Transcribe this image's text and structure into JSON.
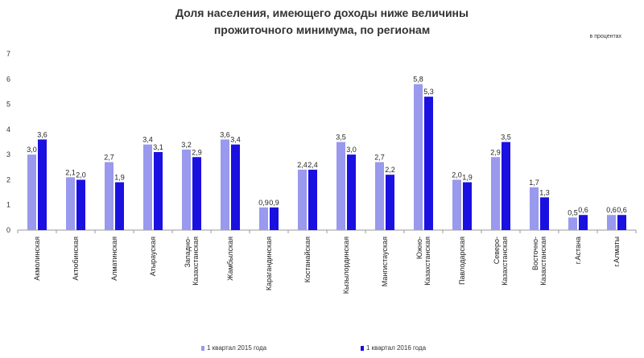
{
  "chart_data": {
    "type": "bar",
    "title": [
      "Доля населения, имеющего доходы ниже величины",
      "прожиточного минимума, по регионам"
    ],
    "unit_label": "в процентах",
    "ylim": [
      0,
      7
    ],
    "yticks": [
      0,
      1,
      2,
      3,
      4,
      5,
      6,
      7
    ],
    "categories": [
      [
        "Акмолинская"
      ],
      [
        "Актюбинская"
      ],
      [
        "Алматинская"
      ],
      [
        "Атырауская"
      ],
      [
        "Западно-",
        "Казахстанская"
      ],
      [
        "Жамбылская"
      ],
      [
        "Карагандинская"
      ],
      [
        "Костанайская"
      ],
      [
        "Кызылординская"
      ],
      [
        "Мангистауская"
      ],
      [
        "Южно-",
        "Казахстанская"
      ],
      [
        "Павлодарская"
      ],
      [
        "Северо-",
        "Казахстанская"
      ],
      [
        "Восточно-",
        "Казахстанская"
      ],
      [
        "г.Астана"
      ],
      [
        "г.Алматы"
      ]
    ],
    "series": [
      {
        "name": "1 квартал 2015 года",
        "color": "#9999ee",
        "values": [
          3.0,
          2.1,
          2.7,
          3.4,
          3.2,
          3.6,
          0.9,
          2.4,
          3.5,
          2.7,
          5.8,
          2.0,
          2.9,
          1.7,
          0.5,
          0.6
        ],
        "labels": [
          "3,0",
          "2,1",
          "2,7",
          "3,4",
          "3,2",
          "3,6",
          "0,9",
          "2,4",
          "3,5",
          "2,7",
          "5,8",
          "2,0",
          "2,9",
          "1,7",
          "0,5",
          "0,6"
        ]
      },
      {
        "name": "1 квартал 2016 года",
        "color": "#1a10e0",
        "values": [
          3.6,
          2.0,
          1.9,
          3.1,
          2.9,
          3.4,
          0.9,
          2.4,
          3.0,
          2.2,
          5.3,
          1.9,
          3.5,
          1.3,
          0.6,
          0.6
        ],
        "labels": [
          "3,6",
          "2,0",
          "1,9",
          "3,1",
          "2,9",
          "3,4",
          "0,9",
          "2,4",
          "3,0",
          "2,2",
          "5,3",
          "1,9",
          "3,5",
          "1,3",
          "0,6",
          "0,6"
        ]
      }
    ]
  }
}
